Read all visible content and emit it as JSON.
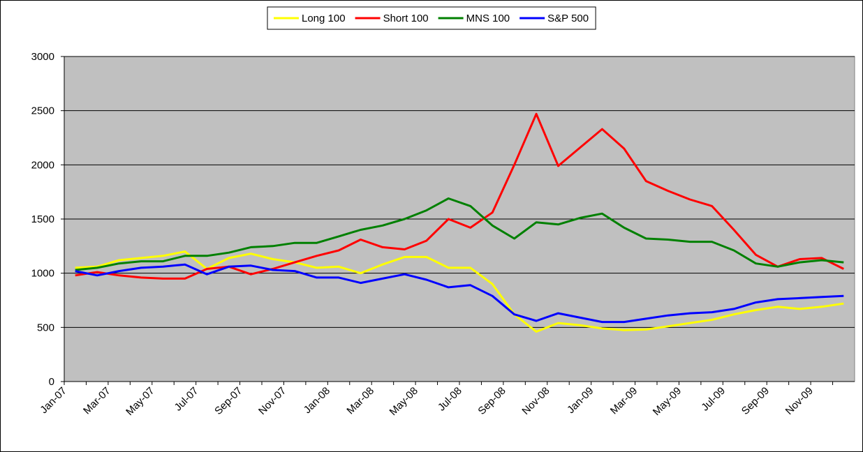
{
  "chart_data": {
    "type": "line",
    "categories": [
      "Jan-07",
      null,
      "Mar-07",
      null,
      "May-07",
      null,
      "Jul-07",
      null,
      "Sep-07",
      null,
      "Nov-07",
      null,
      "Jan-08",
      null,
      "Mar-08",
      null,
      "May-08",
      null,
      "Jul-08",
      null,
      "Sep-08",
      null,
      "Nov-08",
      null,
      "Jan-09",
      null,
      "Mar-09",
      null,
      "May-09",
      null,
      "Jul-09",
      null,
      "Sep-09",
      null,
      "Nov-09",
      null
    ],
    "series": [
      {
        "name": "Long 100",
        "color": "#ffff00",
        "values": [
          1050,
          1060,
          1120,
          1140,
          1160,
          1200,
          1040,
          1140,
          1180,
          1130,
          1100,
          1050,
          1060,
          1000,
          1080,
          1150,
          1150,
          1050,
          1050,
          900,
          620,
          460,
          540,
          520,
          490,
          475,
          480,
          510,
          540,
          570,
          620,
          660,
          690,
          670,
          690,
          720
        ]
      },
      {
        "name": "Short 100",
        "color": "#ff0000",
        "values": [
          980,
          1010,
          980,
          960,
          950,
          950,
          1040,
          1060,
          990,
          1040,
          1100,
          1160,
          1210,
          1310,
          1240,
          1220,
          1300,
          1500,
          1420,
          1560,
          2000,
          2470,
          1990,
          2160,
          2330,
          2150,
          1850,
          1760,
          1680,
          1620,
          1400,
          1170,
          1060,
          1130,
          1140,
          1040
        ]
      },
      {
        "name": "MNS 100",
        "color": "#008000",
        "values": [
          1030,
          1050,
          1090,
          1110,
          1110,
          1160,
          1160,
          1190,
          1240,
          1250,
          1280,
          1280,
          1340,
          1400,
          1440,
          1500,
          1580,
          1690,
          1620,
          1440,
          1320,
          1470,
          1450,
          1510,
          1550,
          1420,
          1320,
          1310,
          1290,
          1290,
          1210,
          1090,
          1060,
          1100,
          1120,
          1100
        ]
      },
      {
        "name": "S&P 500",
        "color": "#0000ff",
        "values": [
          1020,
          980,
          1020,
          1050,
          1060,
          1080,
          990,
          1060,
          1070,
          1030,
          1020,
          960,
          960,
          910,
          950,
          990,
          940,
          870,
          890,
          790,
          620,
          560,
          630,
          590,
          550,
          550,
          580,
          610,
          630,
          640,
          670,
          730,
          760,
          770,
          780,
          790
        ]
      }
    ],
    "ylim": [
      0,
      3000
    ],
    "yticks": [
      0,
      500,
      1000,
      1500,
      2000,
      2500,
      3000
    ],
    "grid": true,
    "legend": "top",
    "plot_background": "#c0c0c0"
  }
}
